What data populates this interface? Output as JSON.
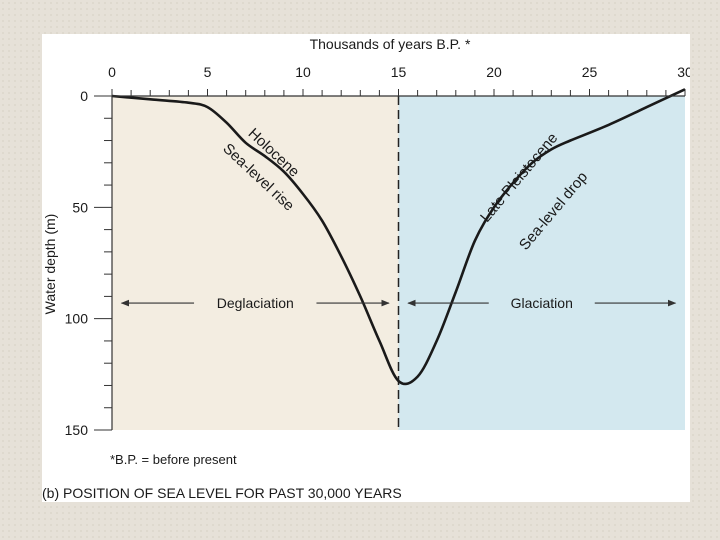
{
  "chart_data": {
    "type": "line",
    "title": "",
    "xlabel": "Thousands of years B.P. *",
    "ylabel": "Water depth (m)",
    "x_axis_position": "top",
    "xlim": [
      0,
      30
    ],
    "ylim": [
      0,
      150
    ],
    "y_inverted": true,
    "x_ticks": [
      "0",
      "5",
      "10",
      "15",
      "20",
      "25",
      "30"
    ],
    "y_ticks": [
      "0",
      "50",
      "100",
      "150"
    ],
    "series": [
      {
        "x": [
          0,
          2,
          4,
          5,
          6,
          7,
          8,
          9,
          10,
          11,
          12,
          13,
          14,
          15,
          16,
          17,
          18,
          19,
          20,
          21,
          22,
          23,
          24,
          26,
          28,
          30
        ],
        "y": [
          0,
          1.5,
          3,
          5,
          12,
          21,
          27,
          34,
          44,
          56,
          72,
          90,
          110,
          128,
          126,
          110,
          88,
          65,
          50,
          39,
          30,
          24,
          20,
          13,
          5,
          -3
        ]
      }
    ],
    "regions": [
      {
        "from": 0,
        "to": 15,
        "color": "#f3ede1"
      },
      {
        "from": 15,
        "to": 30,
        "color": "#d3e8ef"
      }
    ],
    "divider_at": 15,
    "phases": [
      {
        "label": "Deglaciation",
        "from": 0.5,
        "to": 14.5,
        "depth": 93
      },
      {
        "label": "Glaciation",
        "from": 15.5,
        "to": 29.5,
        "depth": 93
      }
    ],
    "curve_labels": [
      {
        "text": "Holocene",
        "x": 8.3,
        "y": 27,
        "angle": 43
      },
      {
        "text": "Sea-level rise",
        "x": 7.5,
        "y": 38,
        "angle": 43
      },
      {
        "text": "Late Pleistocene",
        "x": 21.5,
        "y": 38,
        "angle": -50
      },
      {
        "text": "Sea-level drop",
        "x": 23.3,
        "y": 53,
        "angle": -50
      }
    ],
    "footnote": "*B.P. = before present",
    "caption": "(b) POSITION OF SEA LEVEL FOR PAST 30,000 YEARS",
    "colors": {
      "curve": "#1a1a1a",
      "axis": "#333333",
      "arrows": "#333333"
    }
  }
}
